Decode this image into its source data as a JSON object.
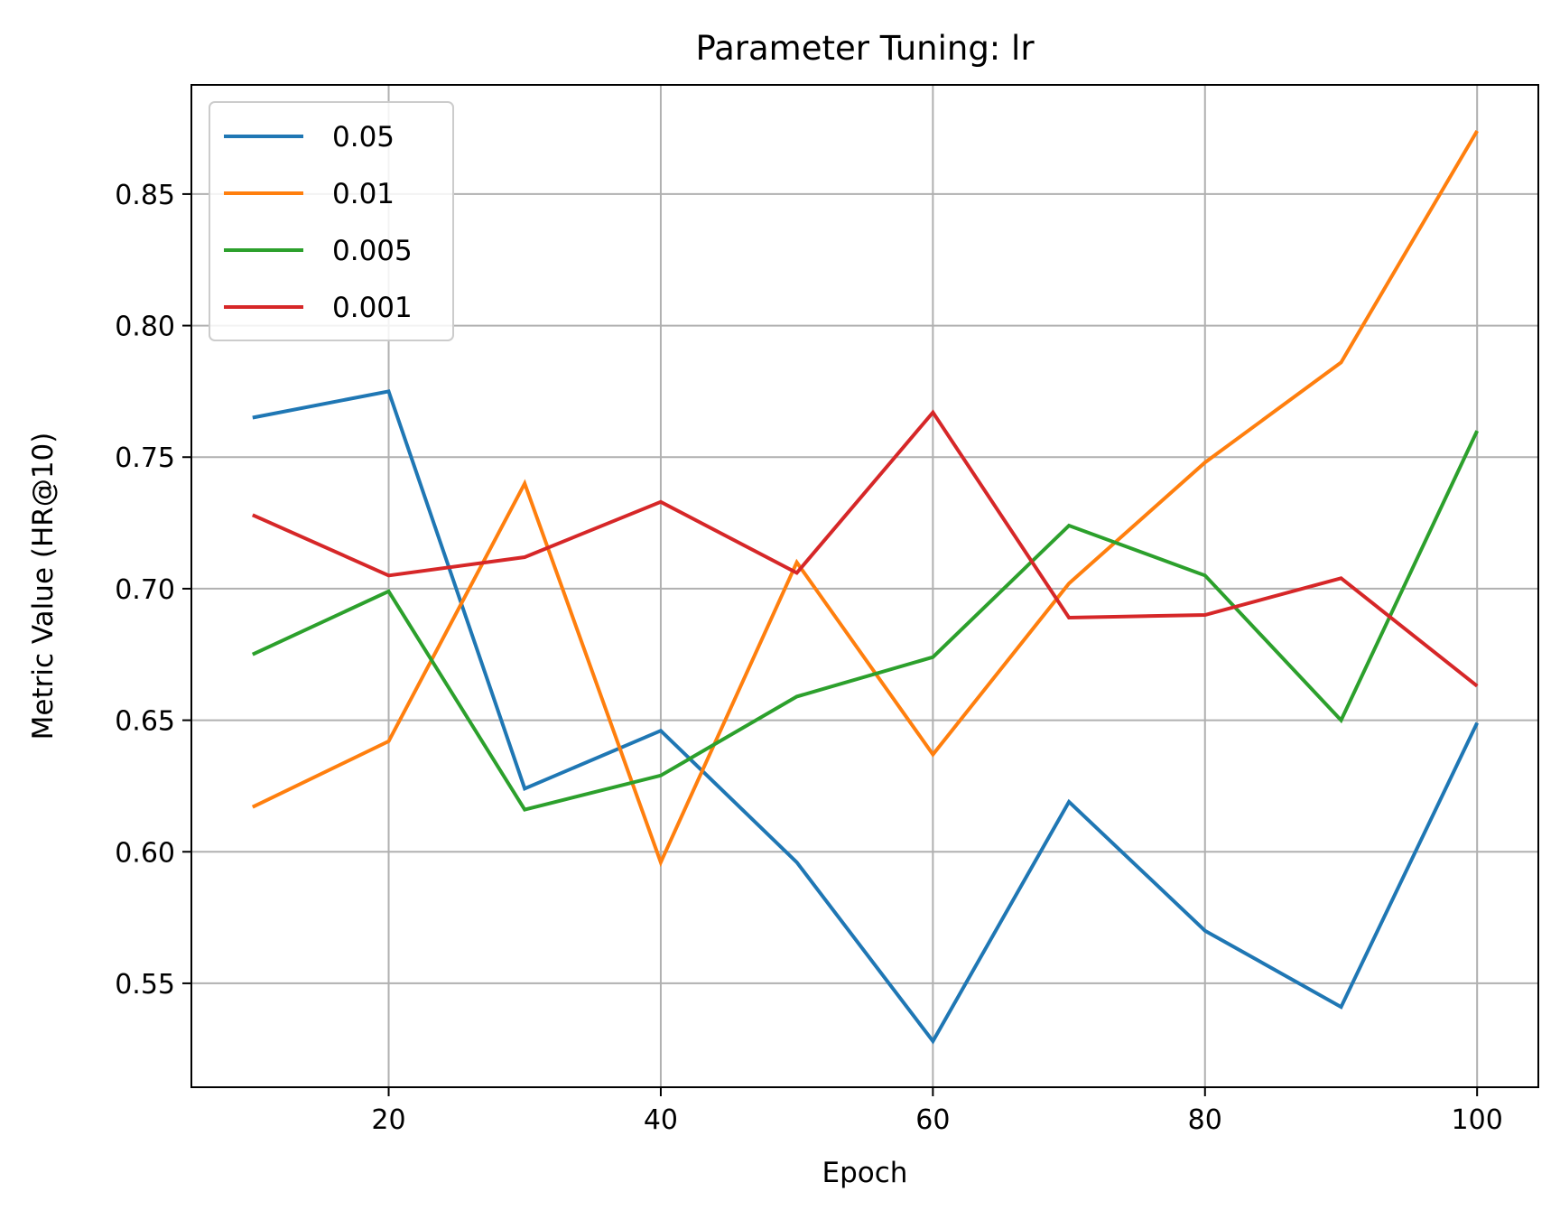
{
  "chart_data": {
    "type": "line",
    "title": "Parameter Tuning: lr",
    "xlabel": "Epoch",
    "ylabel": "Metric Value (HR@10)",
    "x": [
      10,
      20,
      30,
      40,
      50,
      60,
      70,
      80,
      90,
      100
    ],
    "xlim": [
      5.5,
      104.5
    ],
    "ylim": [
      0.5105,
      0.8915
    ],
    "xticks": [
      20,
      40,
      60,
      80,
      100
    ],
    "yticks": [
      0.55,
      0.6,
      0.65,
      0.7,
      0.75,
      0.8,
      0.85
    ],
    "xtick_labels": [
      "20",
      "40",
      "60",
      "80",
      "100"
    ],
    "ytick_labels": [
      "0.55",
      "0.60",
      "0.65",
      "0.70",
      "0.75",
      "0.80",
      "0.85"
    ],
    "grid": true,
    "legend_position": "top-left",
    "series": [
      {
        "name": "0.05",
        "color": "#1f77b4",
        "values": [
          0.765,
          0.775,
          0.624,
          0.646,
          0.596,
          0.528,
          0.619,
          0.57,
          0.541,
          0.649
        ]
      },
      {
        "name": "0.01",
        "color": "#ff7f0e",
        "values": [
          0.617,
          0.642,
          0.74,
          0.596,
          0.71,
          0.637,
          0.702,
          0.748,
          0.786,
          0.874
        ]
      },
      {
        "name": "0.005",
        "color": "#2ca02c",
        "values": [
          0.675,
          0.699,
          0.616,
          0.629,
          0.659,
          0.674,
          0.724,
          0.705,
          0.65,
          0.76
        ]
      },
      {
        "name": "0.001",
        "color": "#d62728",
        "values": [
          0.728,
          0.705,
          0.712,
          0.733,
          0.706,
          0.767,
          0.689,
          0.69,
          0.704,
          0.663
        ]
      }
    ]
  }
}
